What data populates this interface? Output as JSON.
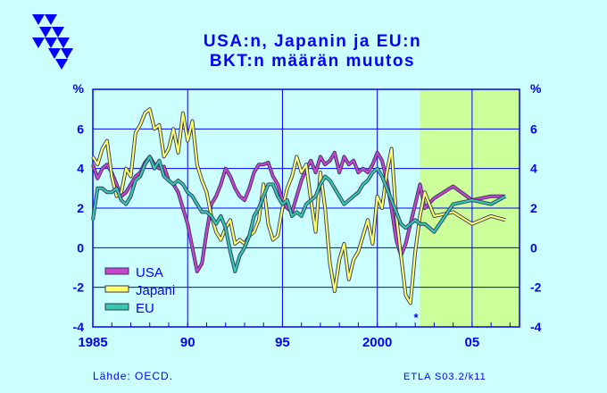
{
  "title": "USA:n, Japanin ja EU:n",
  "subtitle": "BKT:n määrän muutos",
  "source": "Lähde:   OECD.",
  "code": "ETLA S03.2/k11",
  "footnote_marker": "*",
  "chart_data": {
    "type": "line",
    "xlim": [
      1985,
      2007.5
    ],
    "ylim": [
      -4,
      8
    ],
    "y_ticks": [
      -4,
      -2,
      0,
      2,
      4,
      6
    ],
    "y_unit_label": "%",
    "x_ticks": [
      {
        "value": 1985,
        "label": "1985"
      },
      {
        "value": 1990,
        "label": "90"
      },
      {
        "value": 1995,
        "label": "95"
      },
      {
        "value": 2000,
        "label": "2000"
      },
      {
        "value": 2005,
        "label": "05"
      }
    ],
    "forecast_from": 2002.25,
    "grid": true,
    "legend_position": "lower-left",
    "colors": {
      "background": "#ccffff",
      "plot_background": "#ccffff",
      "forecast_background": "#ccff99",
      "axis": "#0000ff",
      "text": "#0000ff"
    },
    "series": [
      {
        "name": "USA",
        "color": "#cc44cc",
        "points": [
          [
            1985,
            4.2
          ],
          [
            1985.25,
            3.5
          ],
          [
            1985.5,
            4
          ],
          [
            1985.75,
            4.2
          ],
          [
            1986,
            3.8
          ],
          [
            1986.25,
            3.2
          ],
          [
            1986.5,
            2.6
          ],
          [
            1986.75,
            2.8
          ],
          [
            1987,
            3.2
          ],
          [
            1987.25,
            3.6
          ],
          [
            1987.5,
            3.8
          ],
          [
            1987.75,
            4.3
          ],
          [
            1988,
            4.6
          ],
          [
            1988.25,
            4.2
          ],
          [
            1988.5,
            4
          ],
          [
            1988.75,
            4.1
          ],
          [
            1989,
            3.4
          ],
          [
            1989.25,
            3.2
          ],
          [
            1989.5,
            2.8
          ],
          [
            1989.75,
            2
          ],
          [
            1990,
            1.2
          ],
          [
            1990.25,
            0
          ],
          [
            1990.5,
            -1.2
          ],
          [
            1990.75,
            -0.8
          ],
          [
            1991,
            0.8
          ],
          [
            1991.25,
            2.2
          ],
          [
            1991.5,
            2.6
          ],
          [
            1991.75,
            3.2
          ],
          [
            1992,
            4
          ],
          [
            1992.25,
            3.6
          ],
          [
            1992.5,
            3
          ],
          [
            1992.75,
            2.6
          ],
          [
            1993,
            2.4
          ],
          [
            1993.25,
            3
          ],
          [
            1993.5,
            3.8
          ],
          [
            1993.75,
            4.2
          ],
          [
            1994,
            4.2
          ],
          [
            1994.25,
            4.3
          ],
          [
            1994.5,
            3.6
          ],
          [
            1994.75,
            3.2
          ],
          [
            1995,
            2.4
          ],
          [
            1995.25,
            2
          ],
          [
            1995.5,
            1.8
          ],
          [
            1995.75,
            2.6
          ],
          [
            1996,
            3.4
          ],
          [
            1996.25,
            4
          ],
          [
            1996.5,
            4.4
          ],
          [
            1996.75,
            3.8
          ],
          [
            1997,
            4.6
          ],
          [
            1997.25,
            4.2
          ],
          [
            1997.5,
            4.4
          ],
          [
            1997.75,
            4.8
          ],
          [
            1998,
            3.8
          ],
          [
            1998.25,
            4.6
          ],
          [
            1998.5,
            4.2
          ],
          [
            1998.75,
            4.4
          ],
          [
            1999,
            3.8
          ],
          [
            1999.25,
            4
          ],
          [
            1999.5,
            3.8
          ],
          [
            1999.75,
            4.2
          ],
          [
            2000,
            4.8
          ],
          [
            2000.25,
            4.4
          ],
          [
            2000.5,
            3.4
          ],
          [
            2000.75,
            2
          ],
          [
            2001,
            0.4
          ],
          [
            2001.25,
            -0.4
          ],
          [
            2001.5,
            0.2
          ],
          [
            2001.75,
            1.2
          ],
          [
            2002,
            2.2
          ],
          [
            2002.25,
            3.2
          ],
          [
            2002.5,
            2
          ],
          [
            2003,
            2.5
          ],
          [
            2004,
            3.1
          ],
          [
            2005,
            2.4
          ],
          [
            2006,
            2.6
          ],
          [
            2006.75,
            2.6
          ]
        ]
      },
      {
        "name": "Japani",
        "color": "#ffff66",
        "points": [
          [
            1985,
            4.6
          ],
          [
            1985.25,
            4.2
          ],
          [
            1985.5,
            5
          ],
          [
            1985.75,
            5.4
          ],
          [
            1986,
            3.6
          ],
          [
            1986.25,
            2.6
          ],
          [
            1986.5,
            2.8
          ],
          [
            1986.75,
            4
          ],
          [
            1987,
            3.6
          ],
          [
            1987.25,
            5.8
          ],
          [
            1987.5,
            6.2
          ],
          [
            1987.75,
            6.8
          ],
          [
            1988,
            7
          ],
          [
            1988.25,
            6
          ],
          [
            1988.5,
            6.2
          ],
          [
            1988.75,
            4.6
          ],
          [
            1989,
            5
          ],
          [
            1989.25,
            6
          ],
          [
            1989.5,
            4.8
          ],
          [
            1989.75,
            6.8
          ],
          [
            1990,
            5.4
          ],
          [
            1990.25,
            6.4
          ],
          [
            1990.5,
            4.2
          ],
          [
            1990.75,
            3.4
          ],
          [
            1991,
            2.8
          ],
          [
            1991.25,
            1.6
          ],
          [
            1991.5,
            0.8
          ],
          [
            1991.75,
            0.4
          ],
          [
            1992,
            1
          ],
          [
            1992.25,
            1.4
          ],
          [
            1992.5,
            0.2
          ],
          [
            1992.75,
            0.4
          ],
          [
            1993,
            0.2
          ],
          [
            1993.25,
            0.6
          ],
          [
            1993.5,
            0.8
          ],
          [
            1993.75,
            1.4
          ],
          [
            1994,
            3.2
          ],
          [
            1994.25,
            1.2
          ],
          [
            1994.5,
            0.4
          ],
          [
            1994.75,
            0.6
          ],
          [
            1995,
            2
          ],
          [
            1995.25,
            3
          ],
          [
            1995.5,
            3.6
          ],
          [
            1995.75,
            4.6
          ],
          [
            1996,
            3.8
          ],
          [
            1996.25,
            4.2
          ],
          [
            1996.5,
            2.4
          ],
          [
            1996.75,
            0.8
          ],
          [
            1997,
            3.8
          ],
          [
            1997.25,
            2
          ],
          [
            1997.5,
            -0.8
          ],
          [
            1997.75,
            -2.2
          ],
          [
            1998,
            -0.6
          ],
          [
            1998.25,
            0.2
          ],
          [
            1998.5,
            -1.6
          ],
          [
            1998.75,
            -0.6
          ],
          [
            1999,
            -0.2
          ],
          [
            1999.25,
            0.6
          ],
          [
            1999.5,
            1.4
          ],
          [
            1999.75,
            0.2
          ],
          [
            2000,
            2.6
          ],
          [
            2000.25,
            2
          ],
          [
            2000.5,
            3.8
          ],
          [
            2000.75,
            5
          ],
          [
            2001,
            1.6
          ],
          [
            2001.25,
            -0.4
          ],
          [
            2001.5,
            -2.4
          ],
          [
            2001.75,
            -2.8
          ],
          [
            2002,
            -0.2
          ],
          [
            2002.25,
            1.6
          ],
          [
            2002.5,
            2.8
          ],
          [
            2003,
            1.6
          ],
          [
            2004,
            1.8
          ],
          [
            2005,
            1.2
          ],
          [
            2006,
            1.6
          ],
          [
            2006.75,
            1.4
          ]
        ]
      },
      {
        "name": "EU",
        "color": "#33ccaa",
        "points": [
          [
            1985,
            1.4
          ],
          [
            1985.25,
            3
          ],
          [
            1985.5,
            3
          ],
          [
            1985.75,
            2.8
          ],
          [
            1986,
            2.8
          ],
          [
            1986.25,
            3
          ],
          [
            1986.5,
            2.4
          ],
          [
            1986.75,
            2.2
          ],
          [
            1987,
            2.6
          ],
          [
            1987.25,
            3.4
          ],
          [
            1987.5,
            3.6
          ],
          [
            1987.75,
            4.2
          ],
          [
            1988,
            4.6
          ],
          [
            1988.25,
            4
          ],
          [
            1988.5,
            4.4
          ],
          [
            1988.75,
            3.6
          ],
          [
            1989,
            3.4
          ],
          [
            1989.25,
            3.2
          ],
          [
            1989.5,
            3.4
          ],
          [
            1989.75,
            3.2
          ],
          [
            1990,
            2.8
          ],
          [
            1990.25,
            2.6
          ],
          [
            1990.5,
            2.2
          ],
          [
            1990.75,
            1.8
          ],
          [
            1991,
            1.8
          ],
          [
            1991.25,
            1.6
          ],
          [
            1991.5,
            1.2
          ],
          [
            1991.75,
            1.6
          ],
          [
            1992,
            1
          ],
          [
            1992.25,
            -0.2
          ],
          [
            1992.5,
            -1.2
          ],
          [
            1992.75,
            -0.4
          ],
          [
            1993,
            0
          ],
          [
            1993.25,
            0.6
          ],
          [
            1993.5,
            1.6
          ],
          [
            1993.75,
            2
          ],
          [
            1994,
            2.6
          ],
          [
            1994.25,
            3.2
          ],
          [
            1994.5,
            3.2
          ],
          [
            1994.75,
            2.6
          ],
          [
            1995,
            2.2
          ],
          [
            1995.25,
            2.4
          ],
          [
            1995.5,
            1.6
          ],
          [
            1995.75,
            1.8
          ],
          [
            1996,
            1.6
          ],
          [
            1996.25,
            2.2
          ],
          [
            1996.5,
            2.4
          ],
          [
            1996.75,
            2.6
          ],
          [
            1997,
            3.2
          ],
          [
            1997.25,
            3.6
          ],
          [
            1997.5,
            3.4
          ],
          [
            1997.75,
            3
          ],
          [
            1998,
            2.6
          ],
          [
            1998.25,
            2.2
          ],
          [
            1998.5,
            2.4
          ],
          [
            1998.75,
            2.6
          ],
          [
            1999,
            2.8
          ],
          [
            1999.25,
            3.2
          ],
          [
            1999.5,
            3.4
          ],
          [
            1999.75,
            3.8
          ],
          [
            2000,
            4
          ],
          [
            2000.25,
            3.6
          ],
          [
            2000.5,
            3
          ],
          [
            2000.75,
            2.4
          ],
          [
            2001,
            1.8
          ],
          [
            2001.25,
            1.2
          ],
          [
            2001.5,
            1
          ],
          [
            2001.75,
            1.2
          ],
          [
            2002,
            1.4
          ],
          [
            2002.25,
            1.2
          ],
          [
            2002.5,
            1.2
          ],
          [
            2003,
            0.8
          ],
          [
            2004,
            2.2
          ],
          [
            2005,
            2.4
          ],
          [
            2006,
            2.2
          ],
          [
            2006.75,
            2.6
          ]
        ]
      }
    ]
  }
}
